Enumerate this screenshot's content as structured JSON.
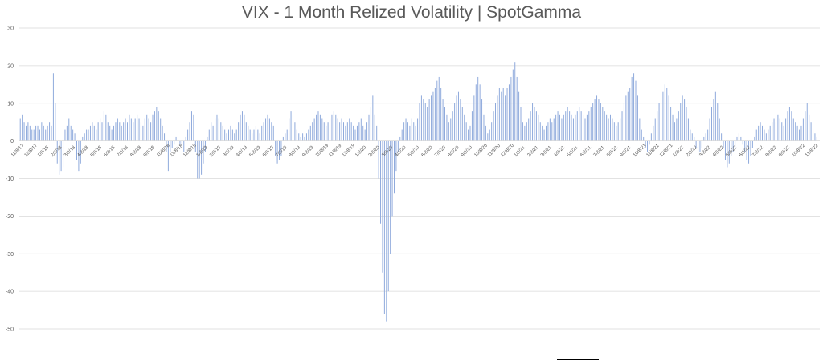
{
  "chart_data": {
    "type": "bar",
    "title": "VIX  - 1 Month Relized Volatility | SpotGamma",
    "xlabel": "",
    "ylabel": "",
    "ylim": [
      -50,
      30
    ],
    "yticks": [
      30,
      20,
      10,
      0,
      -10,
      -20,
      -30,
      -40,
      -50
    ],
    "grid": true,
    "bar_color": "#8faadc",
    "x_tick_labels": [
      "11/8/17",
      "12/8/17",
      "1/8/18",
      "2/8/18",
      "3/8/18",
      "4/8/18",
      "5/8/18",
      "6/8/18",
      "7/8/18",
      "8/8/18",
      "9/8/18",
      "10/8/18",
      "11/8/18",
      "12/8/18",
      "1/8/19",
      "2/8/19",
      "3/8/19",
      "4/8/19",
      "5/8/19",
      "6/8/19",
      "7/8/19",
      "8/8/19",
      "9/8/19",
      "10/8/19",
      "11/8/19",
      "12/8/19",
      "1/8/20",
      "2/8/20",
      "3/8/20",
      "4/8/20",
      "5/8/20",
      "6/8/20",
      "7/8/20",
      "8/8/20",
      "9/8/20",
      "10/8/20",
      "11/8/20",
      "12/8/20",
      "1/8/21",
      "2/8/21",
      "3/8/21",
      "4/8/21",
      "5/8/21",
      "6/8/21",
      "7/8/21",
      "8/8/21",
      "9/8/21",
      "10/8/21",
      "11/8/21",
      "12/8/21",
      "1/8/22",
      "2/8/22",
      "3/8/22",
      "4/8/22",
      "5/8/22",
      "6/8/22",
      "7/8/22",
      "8/8/22",
      "9/8/22",
      "10/8/22",
      "11/8/22"
    ],
    "series": [
      {
        "values": [
          6,
          7,
          5,
          4,
          5,
          4,
          3,
          3,
          4,
          4,
          3,
          5,
          4,
          3,
          4,
          5,
          4,
          18,
          10,
          -6,
          -9,
          -8,
          -7,
          3,
          4,
          6,
          4,
          3,
          2,
          -5,
          -8,
          -6,
          1,
          2,
          3,
          3,
          4,
          5,
          4,
          3,
          5,
          6,
          5,
          8,
          7,
          5,
          4,
          3,
          4,
          5,
          6,
          5,
          4,
          5,
          6,
          5,
          7,
          6,
          5,
          6,
          7,
          6,
          5,
          4,
          6,
          7,
          6,
          5,
          7,
          8,
          9,
          8,
          6,
          4,
          2,
          -3,
          -8,
          -3,
          -2,
          -1,
          1,
          1,
          -1,
          -2,
          -3,
          1,
          3,
          5,
          8,
          7,
          -3,
          -10,
          -10,
          -9,
          -6,
          -3,
          1,
          3,
          5,
          4,
          6,
          7,
          6,
          5,
          4,
          3,
          2,
          3,
          4,
          3,
          2,
          3,
          5,
          7,
          8,
          7,
          5,
          4,
          3,
          2,
          3,
          4,
          3,
          2,
          4,
          5,
          6,
          7,
          6,
          5,
          4,
          -4,
          -6,
          -5,
          -4,
          1,
          2,
          3,
          6,
          8,
          7,
          5,
          3,
          2,
          1,
          2,
          1,
          2,
          3,
          4,
          5,
          6,
          7,
          8,
          7,
          6,
          5,
          4,
          5,
          6,
          7,
          8,
          7,
          6,
          5,
          6,
          5,
          4,
          5,
          6,
          5,
          4,
          3,
          4,
          5,
          6,
          4,
          3,
          5,
          7,
          9,
          12,
          7,
          4,
          -10,
          -22,
          -35,
          -46,
          -48,
          -40,
          -30,
          -20,
          -14,
          -8,
          -3,
          1,
          3,
          5,
          6,
          5,
          4,
          6,
          5,
          4,
          6,
          10,
          12,
          11,
          10,
          9,
          11,
          12,
          13,
          14,
          16,
          17,
          14,
          11,
          9,
          7,
          5,
          6,
          8,
          10,
          12,
          13,
          11,
          9,
          7,
          5,
          3,
          4,
          8,
          12,
          15,
          17,
          15,
          11,
          7,
          4,
          2,
          3,
          5,
          8,
          10,
          12,
          14,
          13,
          14,
          12,
          14,
          15,
          17,
          19,
          21,
          17,
          13,
          9,
          5,
          4,
          5,
          6,
          8,
          10,
          9,
          8,
          7,
          5,
          4,
          3,
          4,
          5,
          6,
          5,
          6,
          7,
          8,
          7,
          6,
          7,
          8,
          9,
          8,
          7,
          6,
          7,
          8,
          9,
          8,
          7,
          6,
          7,
          8,
          9,
          10,
          11,
          12,
          11,
          10,
          9,
          8,
          7,
          6,
          7,
          6,
          5,
          4,
          5,
          6,
          8,
          10,
          12,
          13,
          14,
          17,
          18,
          16,
          12,
          6,
          3,
          1,
          -2,
          -3,
          -1,
          2,
          4,
          6,
          8,
          10,
          12,
          13,
          15,
          14,
          12,
          9,
          7,
          5,
          6,
          8,
          10,
          12,
          11,
          9,
          6,
          3,
          2,
          1,
          -2,
          -4,
          -3,
          -2,
          1,
          2,
          3,
          6,
          9,
          11,
          13,
          10,
          6,
          2,
          -2,
          -5,
          -7,
          -6,
          -4,
          -3,
          -2,
          1,
          2,
          1,
          -1,
          -3,
          -5,
          -6,
          -4,
          -2,
          1,
          3,
          4,
          5,
          4,
          3,
          2,
          3,
          4,
          5,
          6,
          5,
          7,
          6,
          5,
          4,
          6,
          8,
          9,
          8,
          6,
          5,
          4,
          3,
          4,
          6,
          8,
          10,
          7,
          5,
          3,
          2,
          1,
          0
        ]
      }
    ]
  }
}
